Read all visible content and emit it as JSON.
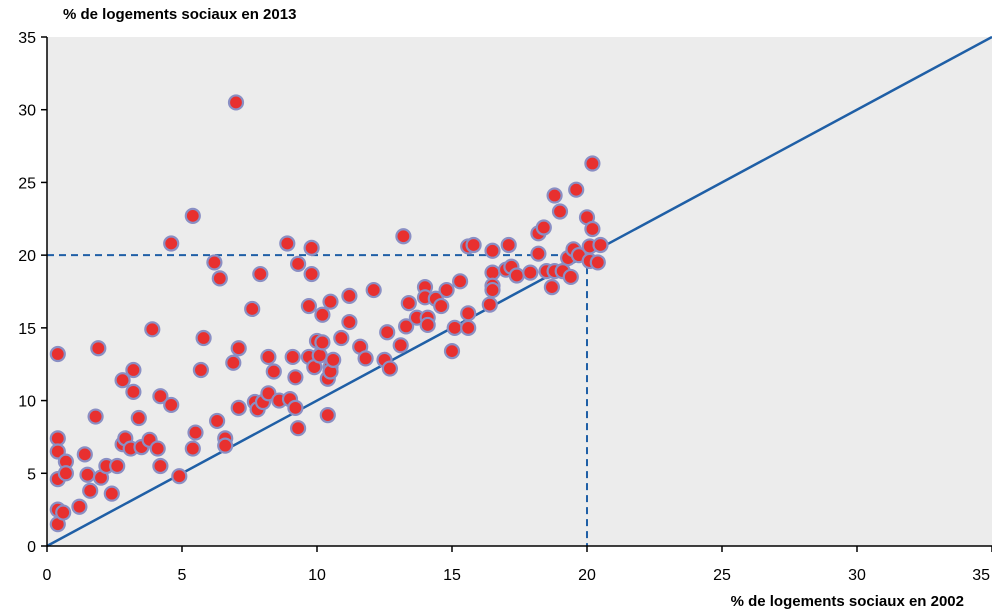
{
  "chart_data": {
    "type": "scatter",
    "xlabel": "% de logements sociaux en 2002",
    "ylabel": "% de logements sociaux en 2013",
    "xlim": [
      0,
      35
    ],
    "ylim": [
      0,
      35
    ],
    "xticks": [
      0,
      5,
      10,
      15,
      20,
      25,
      30,
      35
    ],
    "yticks": [
      0,
      5,
      10,
      15,
      20,
      25,
      30,
      35
    ],
    "grid": false,
    "reference_line": {
      "from": [
        0,
        0
      ],
      "to": [
        35,
        35
      ],
      "color": "#1f5fa6"
    },
    "threshold": {
      "x": 20,
      "y": 20,
      "style": "dashed",
      "color": "#1f5fa6"
    },
    "colors": {
      "background": "#ececec",
      "point_fill": "#e8302f",
      "point_stroke": "#8a8fc4"
    },
    "points": [
      [
        0.4,
        13.2
      ],
      [
        0.4,
        7.4
      ],
      [
        0.4,
        6.5
      ],
      [
        0.4,
        4.6
      ],
      [
        0.4,
        2.5
      ],
      [
        0.4,
        1.5
      ],
      [
        0.6,
        2.3
      ],
      [
        0.7,
        5.8
      ],
      [
        0.7,
        5.0
      ],
      [
        1.2,
        2.7
      ],
      [
        1.4,
        6.3
      ],
      [
        1.5,
        4.9
      ],
      [
        1.6,
        3.8
      ],
      [
        1.8,
        8.9
      ],
      [
        1.9,
        13.6
      ],
      [
        2.0,
        4.7
      ],
      [
        2.2,
        5.5
      ],
      [
        2.4,
        3.6
      ],
      [
        2.6,
        5.5
      ],
      [
        2.8,
        11.4
      ],
      [
        2.8,
        7.0
      ],
      [
        2.9,
        7.4
      ],
      [
        3.1,
        6.7
      ],
      [
        3.2,
        12.1
      ],
      [
        3.2,
        10.6
      ],
      [
        3.4,
        8.8
      ],
      [
        3.5,
        6.8
      ],
      [
        3.8,
        7.3
      ],
      [
        3.9,
        14.9
      ],
      [
        4.1,
        6.7
      ],
      [
        4.2,
        10.3
      ],
      [
        4.2,
        5.5
      ],
      [
        4.6,
        20.8
      ],
      [
        4.6,
        9.7
      ],
      [
        4.9,
        4.8
      ],
      [
        5.4,
        22.7
      ],
      [
        5.4,
        6.7
      ],
      [
        5.5,
        7.8
      ],
      [
        5.7,
        12.1
      ],
      [
        5.8,
        14.3
      ],
      [
        6.2,
        19.5
      ],
      [
        6.3,
        8.6
      ],
      [
        6.4,
        18.4
      ],
      [
        6.6,
        7.4
      ],
      [
        6.6,
        6.9
      ],
      [
        6.9,
        12.6
      ],
      [
        7.0,
        30.5
      ],
      [
        7.1,
        13.6
      ],
      [
        7.1,
        9.5
      ],
      [
        7.6,
        16.3
      ],
      [
        7.7,
        9.9
      ],
      [
        7.8,
        9.4
      ],
      [
        7.9,
        18.7
      ],
      [
        8.0,
        9.9
      ],
      [
        8.2,
        13.0
      ],
      [
        8.2,
        10.5
      ],
      [
        8.4,
        12.0
      ],
      [
        8.6,
        10.0
      ],
      [
        8.9,
        20.8
      ],
      [
        9.0,
        10.1
      ],
      [
        9.1,
        13.0
      ],
      [
        9.2,
        9.5
      ],
      [
        9.2,
        11.6
      ],
      [
        9.3,
        19.4
      ],
      [
        9.3,
        8.1
      ],
      [
        9.7,
        16.5
      ],
      [
        9.7,
        13.0
      ],
      [
        9.8,
        20.5
      ],
      [
        9.8,
        18.7
      ],
      [
        9.9,
        12.3
      ],
      [
        10.0,
        14.1
      ],
      [
        10.1,
        13.1
      ],
      [
        10.2,
        15.9
      ],
      [
        10.2,
        14.0
      ],
      [
        10.4,
        11.5
      ],
      [
        10.4,
        9.0
      ],
      [
        10.5,
        16.8
      ],
      [
        10.5,
        12.3
      ],
      [
        10.5,
        12.0
      ],
      [
        10.6,
        12.8
      ],
      [
        10.9,
        14.3
      ],
      [
        11.2,
        17.2
      ],
      [
        11.2,
        15.4
      ],
      [
        11.6,
        13.7
      ],
      [
        11.8,
        12.9
      ],
      [
        12.1,
        17.6
      ],
      [
        12.5,
        12.8
      ],
      [
        12.6,
        14.7
      ],
      [
        12.7,
        12.2
      ],
      [
        13.1,
        13.8
      ],
      [
        13.2,
        21.3
      ],
      [
        13.3,
        15.1
      ],
      [
        13.4,
        16.7
      ],
      [
        13.7,
        15.7
      ],
      [
        14.0,
        17.8
      ],
      [
        14.0,
        17.1
      ],
      [
        14.1,
        15.7
      ],
      [
        14.1,
        15.2
      ],
      [
        14.4,
        17.0
      ],
      [
        14.6,
        16.5
      ],
      [
        14.8,
        17.6
      ],
      [
        15.0,
        13.4
      ],
      [
        15.1,
        15.0
      ],
      [
        15.3,
        18.2
      ],
      [
        15.6,
        20.6
      ],
      [
        15.6,
        16.0
      ],
      [
        15.6,
        15.0
      ],
      [
        15.8,
        20.7
      ],
      [
        16.4,
        16.6
      ],
      [
        16.5,
        20.3
      ],
      [
        16.5,
        18.8
      ],
      [
        16.5,
        17.9
      ],
      [
        16.5,
        17.6
      ],
      [
        17.0,
        19.0
      ],
      [
        17.1,
        20.7
      ],
      [
        17.2,
        19.2
      ],
      [
        17.4,
        18.6
      ],
      [
        17.9,
        18.8
      ],
      [
        18.2,
        21.5
      ],
      [
        18.2,
        20.1
      ],
      [
        18.4,
        21.9
      ],
      [
        18.5,
        18.9
      ],
      [
        18.7,
        17.8
      ],
      [
        18.8,
        18.9
      ],
      [
        18.8,
        24.1
      ],
      [
        19.0,
        23.0
      ],
      [
        19.1,
        18.9
      ],
      [
        19.3,
        19.8
      ],
      [
        19.4,
        18.5
      ],
      [
        19.5,
        20.4
      ],
      [
        19.6,
        24.5
      ],
      [
        19.7,
        20.0
      ],
      [
        20.0,
        22.6
      ],
      [
        20.1,
        20.6
      ],
      [
        20.1,
        19.6
      ],
      [
        20.2,
        26.3
      ],
      [
        20.2,
        21.8
      ],
      [
        20.4,
        19.5
      ],
      [
        20.5,
        20.7
      ]
    ]
  }
}
